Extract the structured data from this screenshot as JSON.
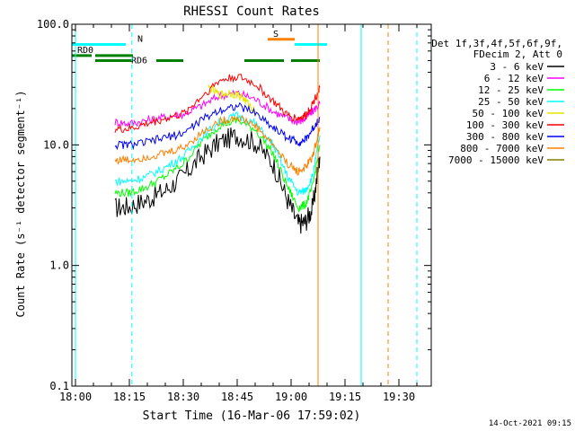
{
  "chart_data": {
    "type": "line",
    "title": "RHESSI Count Rates",
    "xlabel": "Start Time (16-Mar-06 17:59:02)",
    "ylabel": "Count Rate (s⁻¹ detector segment⁻¹)",
    "yscale": "log",
    "ylim": [
      0.1,
      100.0
    ],
    "xlim_minutes_after_1800": [
      -1,
      39
    ],
    "x_ticks": [
      "18:00",
      "18:15",
      "18:30",
      "18:45",
      "19:00",
      "19:15",
      "19:30"
    ],
    "y_ticks": [
      "0.1",
      "1.0",
      "10.0",
      "100.0"
    ],
    "legend_header": [
      "Det 1f,3f,4f,5f,6f,9f,",
      "FDecim 2, Att 0"
    ],
    "legend_position": "right",
    "timestamp": "14-Oct-2021 09:15",
    "series": [
      {
        "name": "3 - 6 keV",
        "color": "#000000",
        "points": [
          [
            11,
            3.0
          ],
          [
            15,
            3.1
          ],
          [
            20,
            3.5
          ],
          [
            25,
            4.2
          ],
          [
            30,
            5.5
          ],
          [
            35,
            8.0
          ],
          [
            40,
            10.5
          ],
          [
            45,
            12.0
          ],
          [
            50,
            10.5
          ],
          [
            55,
            7.0
          ],
          [
            59,
            3.5
          ],
          [
            62,
            2.2
          ],
          [
            64,
            2.3
          ],
          [
            66,
            3.0
          ],
          [
            68,
            8.0
          ]
        ]
      },
      {
        "name": "6 - 12 keV",
        "color": "#ff00ff",
        "points": [
          [
            11,
            15.5
          ],
          [
            15,
            15.0
          ],
          [
            20,
            16.0
          ],
          [
            25,
            17.0
          ],
          [
            30,
            18.0
          ],
          [
            35,
            21.0
          ],
          [
            40,
            25.5
          ],
          [
            45,
            27.0
          ],
          [
            50,
            24.0
          ],
          [
            55,
            19.0
          ],
          [
            59,
            16.5
          ],
          [
            62,
            15.5
          ],
          [
            64,
            16.5
          ],
          [
            66,
            19.0
          ],
          [
            68,
            22.0
          ]
        ]
      },
      {
        "name": "12 - 25 keV",
        "color": "#00ff00",
        "points": [
          [
            11,
            4.0
          ],
          [
            15,
            4.0
          ],
          [
            20,
            4.5
          ],
          [
            25,
            5.5
          ],
          [
            30,
            7.0
          ],
          [
            35,
            10.5
          ],
          [
            40,
            14.5
          ],
          [
            45,
            16.0
          ],
          [
            50,
            13.5
          ],
          [
            55,
            8.5
          ],
          [
            59,
            4.5
          ],
          [
            62,
            3.0
          ],
          [
            64,
            3.2
          ],
          [
            66,
            4.5
          ],
          [
            68,
            10.0
          ]
        ]
      },
      {
        "name": "25 - 50 keV",
        "color": "#00ffff",
        "points": [
          [
            11,
            5.0
          ],
          [
            15,
            5.0
          ],
          [
            20,
            5.5
          ],
          [
            25,
            6.5
          ],
          [
            30,
            8.0
          ],
          [
            35,
            11.5
          ],
          [
            40,
            15.5
          ],
          [
            45,
            17.5
          ],
          [
            50,
            15.0
          ],
          [
            55,
            10.0
          ],
          [
            59,
            5.5
          ],
          [
            62,
            4.0
          ],
          [
            64,
            4.2
          ],
          [
            66,
            5.5
          ],
          [
            68,
            12.0
          ]
        ]
      },
      {
        "name": "50 - 100 keV",
        "color": "#e6e600",
        "points": [
          [
            37,
            30.0
          ],
          [
            40,
            26.0
          ],
          [
            43,
            27.0
          ],
          [
            46,
            25.5
          ],
          [
            48,
            22.0
          ],
          [
            50,
            19.0
          ]
        ]
      },
      {
        "name": "100 - 300 keV",
        "color": "#ff0000",
        "points": [
          [
            11,
            13.5
          ],
          [
            15,
            13.5
          ],
          [
            20,
            15.0
          ],
          [
            25,
            16.5
          ],
          [
            30,
            18.0
          ],
          [
            35,
            25.0
          ],
          [
            40,
            34.0
          ],
          [
            45,
            37.0
          ],
          [
            50,
            32.0
          ],
          [
            55,
            23.0
          ],
          [
            59,
            17.5
          ],
          [
            62,
            16.5
          ],
          [
            64,
            17.5
          ],
          [
            66,
            22.0
          ],
          [
            68,
            30.0
          ]
        ]
      },
      {
        "name": "300 - 800 keV",
        "color": "#0000ff",
        "points": [
          [
            11,
            10.0
          ],
          [
            15,
            10.0
          ],
          [
            20,
            10.5
          ],
          [
            25,
            11.5
          ],
          [
            30,
            12.5
          ],
          [
            35,
            16.0
          ],
          [
            40,
            19.5
          ],
          [
            45,
            21.0
          ],
          [
            50,
            18.5
          ],
          [
            55,
            14.0
          ],
          [
            59,
            11.5
          ],
          [
            62,
            10.5
          ],
          [
            64,
            11.0
          ],
          [
            66,
            13.5
          ],
          [
            68,
            17.0
          ]
        ]
      },
      {
        "name": "800 - 7000 keV",
        "color": "#ff8000",
        "points": [
          [
            11,
            7.5
          ],
          [
            15,
            7.5
          ],
          [
            20,
            8.0
          ],
          [
            25,
            8.5
          ],
          [
            30,
            9.5
          ],
          [
            35,
            12.5
          ],
          [
            40,
            15.5
          ],
          [
            45,
            17.0
          ],
          [
            50,
            14.5
          ],
          [
            55,
            10.0
          ],
          [
            59,
            7.0
          ],
          [
            62,
            6.0
          ],
          [
            64,
            6.5
          ],
          [
            66,
            8.0
          ],
          [
            68,
            14.0
          ]
        ]
      },
      {
        "name": "7000 - 15000 keV",
        "color": "#808000",
        "points": []
      }
    ],
    "flag_bars": [
      {
        "label": "RD0",
        "color": "#008000",
        "level": 55,
        "segments": [
          [
            -1,
            4.5
          ],
          [
            5.5,
            16
          ]
        ]
      },
      {
        "label": "RD6",
        "color": "#008000",
        "level": 50,
        "segments": [
          [
            5.5,
            16
          ],
          [
            22.5,
            30
          ],
          [
            47,
            58
          ]
        ]
      },
      {
        "label": "",
        "color": "#008000",
        "level": 50,
        "segments": [
          [
            48.5,
            58
          ],
          [
            60,
            68
          ]
        ]
      },
      {
        "label": "N",
        "color": "#00ffff",
        "level": 68,
        "segments": [
          [
            -1,
            14
          ],
          [
            61,
            70
          ]
        ]
      },
      {
        "label": "S",
        "color": "#ff8000",
        "level": 75,
        "segments": [
          [
            53.5,
            61
          ]
        ]
      }
    ],
    "vertical_markers": [
      {
        "x": 0,
        "color": "#00ffff",
        "style": "solid"
      },
      {
        "x": 15.7,
        "color": "#00ffff",
        "style": "dashed"
      },
      {
        "x": 67.5,
        "color": "#ff8000",
        "style": "solid"
      },
      {
        "x": 79.5,
        "color": "#00ffff",
        "style": "solid"
      },
      {
        "x": 87,
        "color": "#ff8000",
        "style": "dashed"
      },
      {
        "x": 95,
        "color": "#00ffff",
        "style": "dashed"
      }
    ]
  }
}
